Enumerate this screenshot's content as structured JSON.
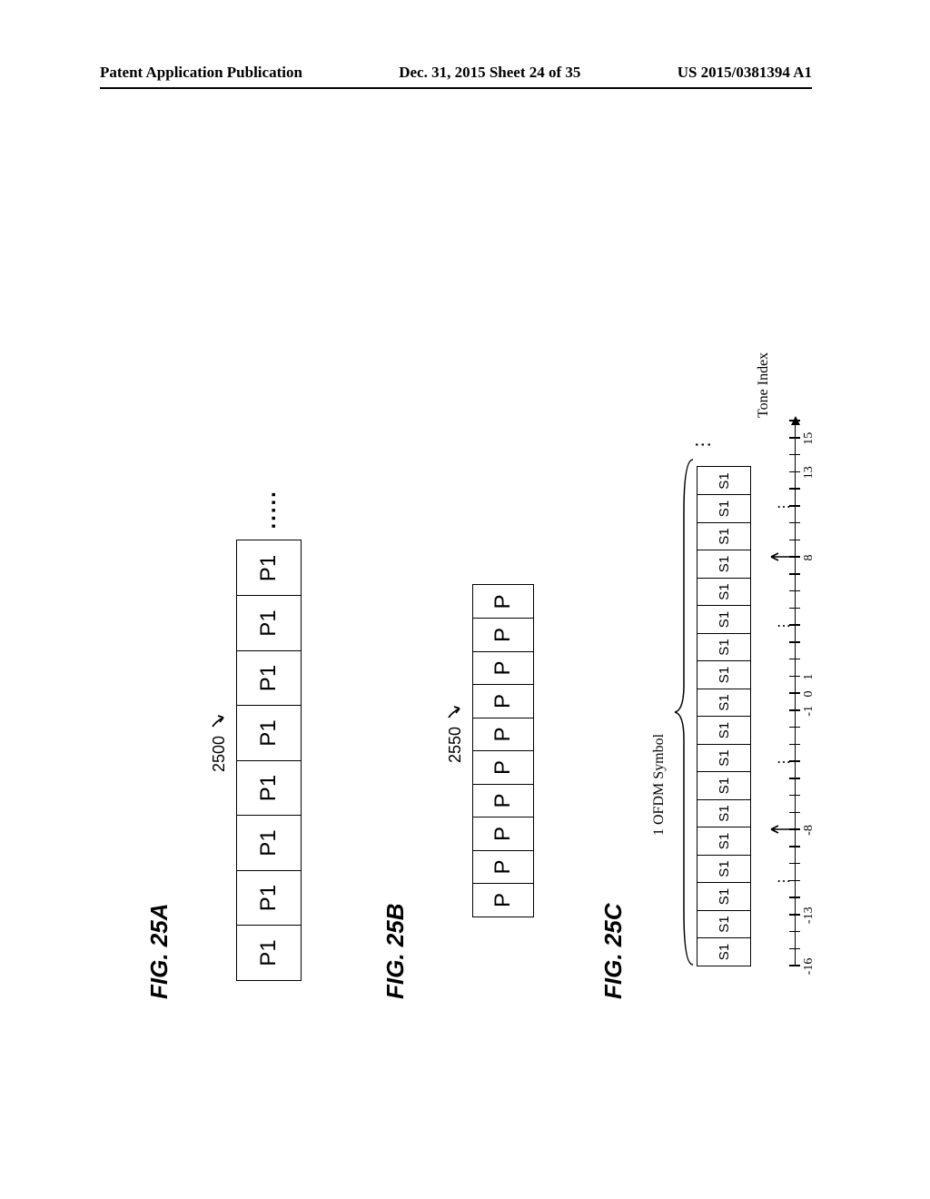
{
  "header": {
    "left": "Patent Application Publication",
    "center": "Dec. 31, 2015  Sheet 24 of 35",
    "right": "US 2015/0381394 A1"
  },
  "figA": {
    "label": "FIG. 25A",
    "ref": "2500",
    "cells": [
      "P1",
      "P1",
      "P1",
      "P1",
      "P1",
      "P1",
      "P1",
      "P1"
    ],
    "trailing_dots": "....."
  },
  "figB": {
    "label": "FIG. 25B",
    "ref": "2550",
    "cells": [
      "P",
      "P",
      "P",
      "P",
      "P",
      "P",
      "P",
      "P",
      "P",
      "P"
    ]
  },
  "figC": {
    "label": "FIG. 25C",
    "ofdm_label": "1 OFDM Symbol",
    "cells": [
      "S1",
      "S1",
      "S1",
      "S1",
      "S1",
      "S1",
      "S1",
      "S1",
      "S1",
      "S1",
      "S1",
      "S1",
      "S1",
      "S1",
      "S1",
      "S1",
      "S1",
      "S1"
    ],
    "trailing_dots": "⋮",
    "tone_label": "Tone Index",
    "axis": {
      "ticks": [
        -16,
        -15,
        -14,
        -13,
        -12,
        -11,
        -10,
        -9,
        -8,
        -7,
        -6,
        -5,
        -4,
        -3,
        -2,
        -1,
        0,
        1,
        2,
        3,
        4,
        5,
        6,
        7,
        8,
        9,
        10,
        11,
        12,
        13,
        14,
        15,
        16
      ],
      "labels": {
        "-16": "-16",
        "-13": "-13",
        "-8": "-8",
        "-1": "-1",
        "0": "0",
        "1": "1",
        "8": "8",
        "13": "13",
        "15": "15"
      },
      "up_arrows_at": [
        -8,
        8
      ],
      "dot_groups_at": [
        -11,
        -4,
        4,
        11
      ]
    }
  },
  "colors": {
    "fg": "#000000",
    "bg": "#ffffff"
  }
}
